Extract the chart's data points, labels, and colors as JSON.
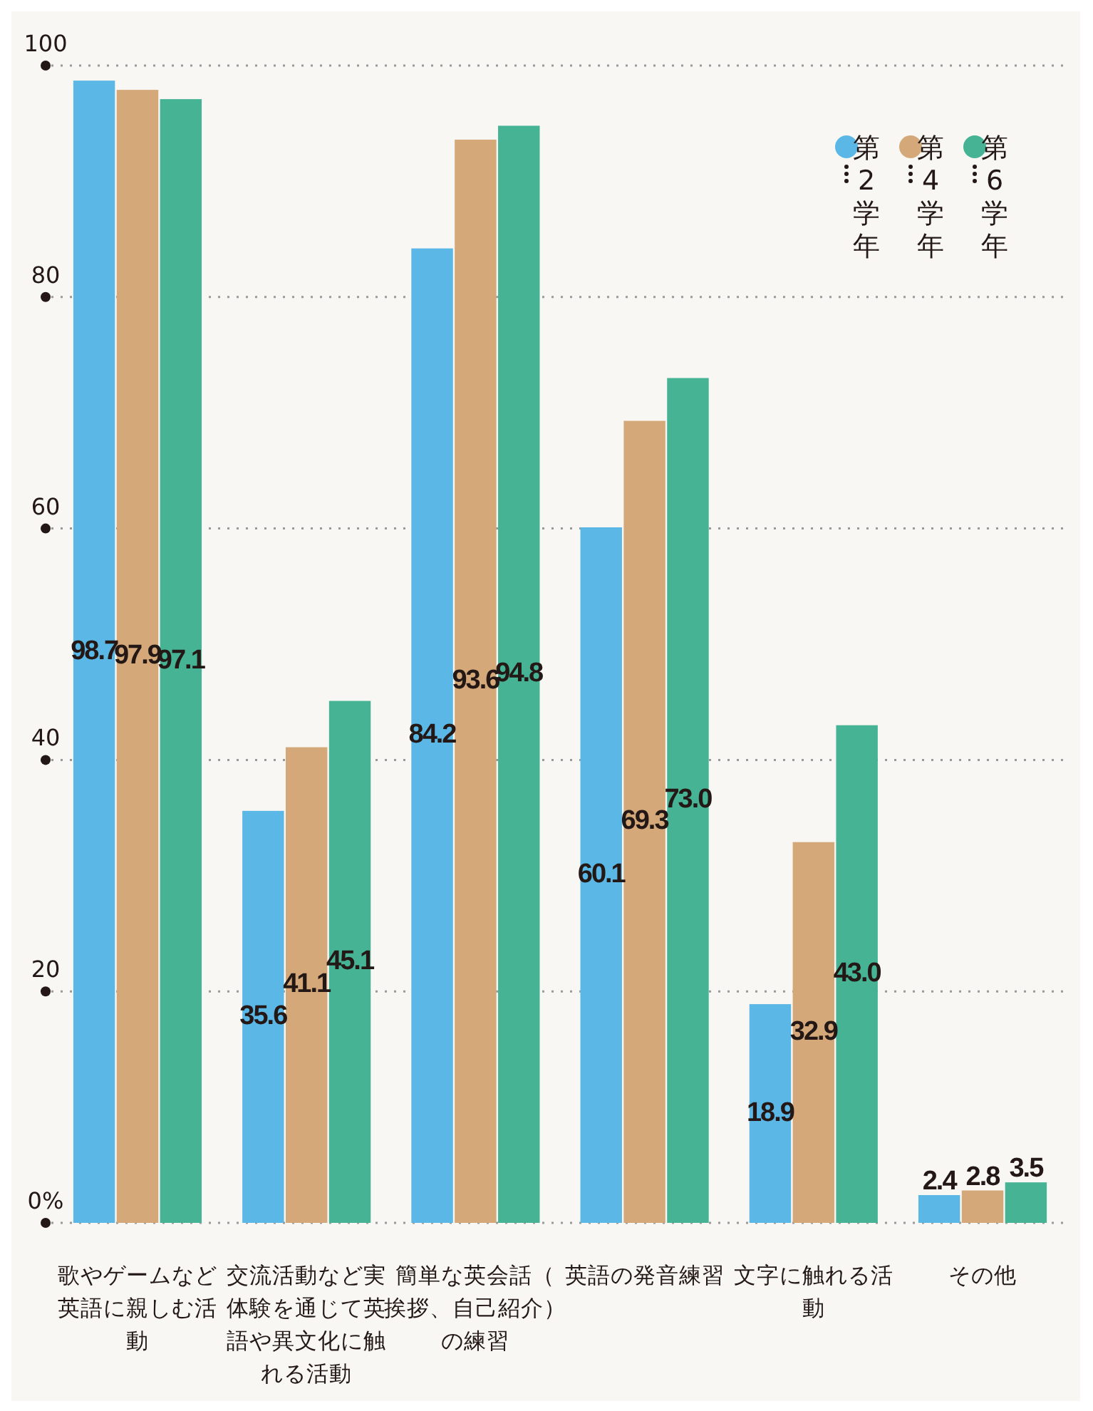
{
  "chart_data": {
    "type": "bar",
    "categories": [
      "歌やゲームなど英語に親しむ活動",
      "交流活動など実体験を通じて英語や異文化に触れる活動",
      "簡単な英会話（挨拶、自己紹介）の練習",
      "英語の発音練習",
      "文字に触れる活動",
      "その他"
    ],
    "series": [
      {
        "name": "第2学年",
        "color": "#5bb8e6",
        "values": [
          98.7,
          35.6,
          84.2,
          60.1,
          18.9,
          2.4
        ],
        "value_labels": [
          "98.7",
          "35.6",
          "84.2",
          "60.1",
          "18.9",
          "2.4"
        ]
      },
      {
        "name": "第4学年",
        "color": "#d4a878",
        "values": [
          97.9,
          41.1,
          93.6,
          69.3,
          32.9,
          2.8
        ],
        "value_labels": [
          "97.9",
          "41.1",
          "93.6",
          "69.3",
          "32.9",
          "2.8"
        ]
      },
      {
        "name": "第6学年",
        "color": "#45b394",
        "values": [
          97.1,
          45.1,
          94.8,
          73.0,
          43.0,
          3.5
        ],
        "value_labels": [
          "97.1",
          "45.1",
          "94.8",
          "73.0",
          "43.0",
          "3.5"
        ]
      }
    ],
    "ylim": [
      0,
      100
    ],
    "yticks": [
      {
        "value": 0,
        "label": "0%"
      },
      20,
      40,
      60,
      80,
      100
    ],
    "grid": "y",
    "legend": "top right"
  }
}
